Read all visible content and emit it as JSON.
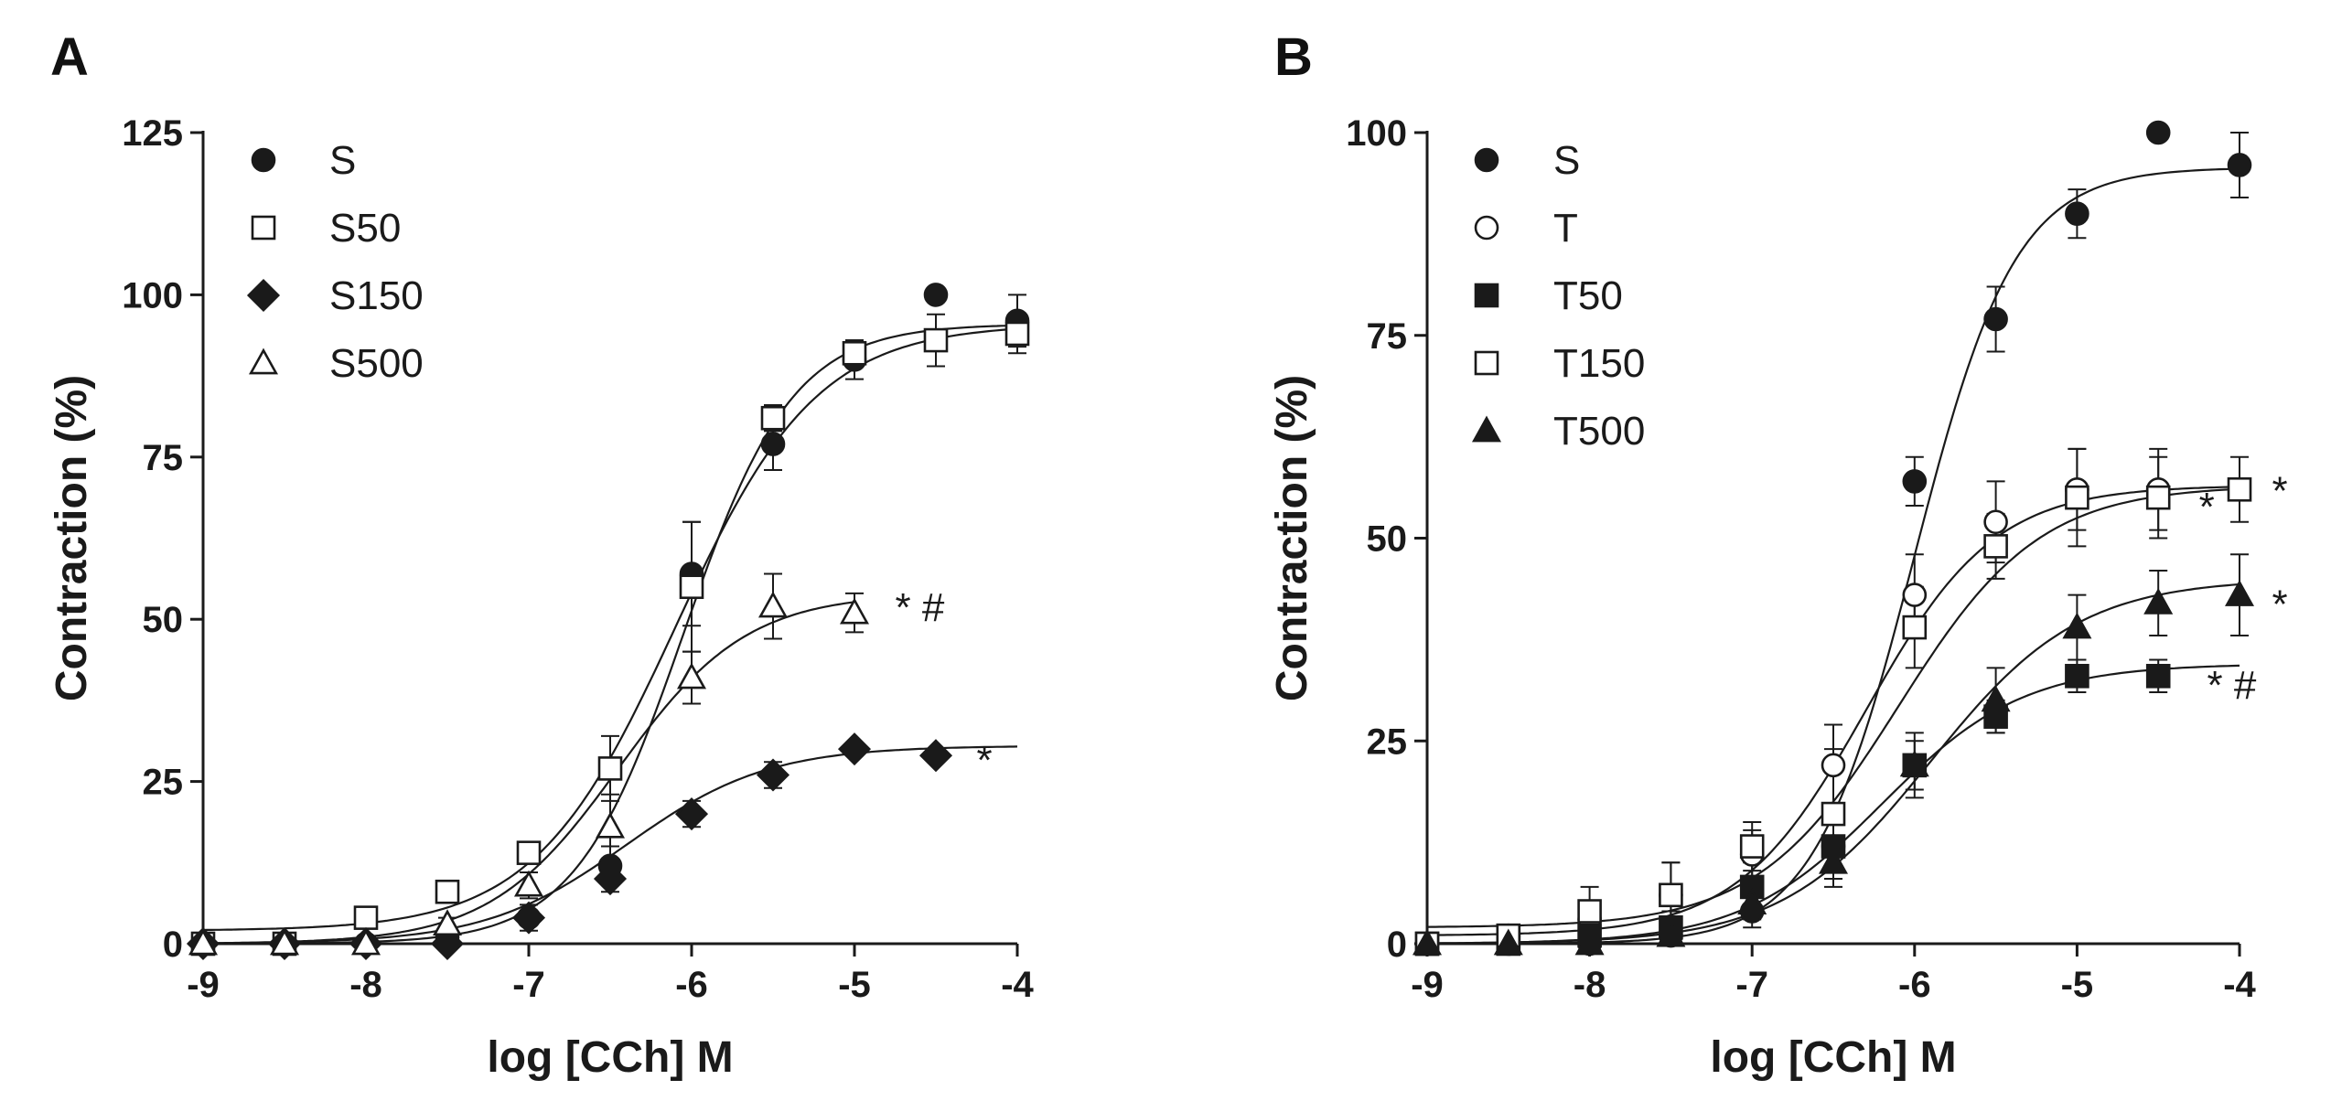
{
  "chart_data": [
    {
      "panel": "A",
      "type": "scatter",
      "xlabel": "log [CCh] M",
      "ylabel": "Contraction (%)",
      "xlim": [
        -9,
        -4
      ],
      "ylim": [
        0,
        125
      ],
      "xticks": [
        "-9",
        "-8",
        "-7",
        "-6",
        "-5",
        "-4"
      ],
      "yticks": [
        "0",
        "25",
        "50",
        "75",
        "100",
        "125"
      ],
      "legend_position": "top-left",
      "series": [
        {
          "name": "S",
          "marker": "filled-circle",
          "x": [
            -9,
            -8.5,
            -8,
            -7.5,
            -7,
            -6.5,
            -6,
            -5.5,
            -5,
            -4.5,
            -4
          ],
          "y": [
            0,
            0,
            0,
            1,
            4,
            12,
            57,
            77,
            90,
            100,
            96
          ],
          "err": [
            0,
            0,
            0,
            1,
            2,
            3,
            8,
            4,
            3,
            0,
            4
          ],
          "fit": {
            "bottom": 0,
            "top": 95.5,
            "logEC50": -6.05,
            "hill": 1.3
          }
        },
        {
          "name": "S50",
          "marker": "open-square",
          "x": [
            -9,
            -8.5,
            -8,
            -7.5,
            -7,
            -6.5,
            -6,
            -5.5,
            -5,
            -4.5,
            -4
          ],
          "y": [
            0,
            0,
            4,
            8,
            14,
            27,
            55,
            81,
            91,
            93,
            94
          ],
          "err": [
            0,
            0,
            0,
            1,
            1,
            5,
            10,
            2,
            2,
            4,
            3
          ],
          "fit": {
            "bottom": 2,
            "top": 95.5,
            "logEC50": -6.1,
            "hill": 1.0
          }
        },
        {
          "name": "S150",
          "marker": "filled-diamond",
          "x": [
            -9,
            -8.5,
            -8,
            -7.5,
            -7,
            -6.5,
            -6,
            -5.5,
            -5,
            -4.5
          ],
          "y": [
            0,
            0,
            0,
            0,
            4,
            10,
            20,
            26,
            30,
            29
          ],
          "err": [
            0,
            0,
            0,
            1,
            1,
            2,
            2,
            2,
            1,
            1
          ],
          "fit": {
            "bottom": 0,
            "top": 30.5,
            "logEC50": -6.4,
            "hill": 1.0
          }
        },
        {
          "name": "S500",
          "marker": "open-triangle",
          "x": [
            -9,
            -8.5,
            -8,
            -7.5,
            -7,
            -6.5,
            -6,
            -5.5,
            -5
          ],
          "y": [
            0,
            0,
            0,
            3,
            9,
            18,
            41,
            52,
            51
          ],
          "err": [
            0,
            0,
            0,
            1,
            2,
            5,
            4,
            5,
            3
          ],
          "fit": {
            "bottom": 0,
            "top": 54,
            "logEC50": -6.45,
            "hill": 1.1,
            "xmax": -5
          }
        }
      ],
      "annotations": [
        {
          "text": "* #",
          "x": -4.75,
          "y": 52
        },
        {
          "text": "*",
          "x": -4.25,
          "y": 28.5
        }
      ]
    },
    {
      "panel": "B",
      "type": "scatter",
      "xlabel": "log [CCh] M",
      "ylabel": "Contraction (%)",
      "xlim": [
        -9,
        -4
      ],
      "ylim": [
        0,
        100
      ],
      "xticks": [
        "-9",
        "-8",
        "-7",
        "-6",
        "-5",
        "-4"
      ],
      "yticks": [
        "0",
        "25",
        "50",
        "75",
        "100"
      ],
      "legend_position": "top-left",
      "series": [
        {
          "name": "S",
          "marker": "filled-circle",
          "x": [
            -9,
            -8.5,
            -8,
            -7.5,
            -7,
            -6.5,
            -6,
            -5.5,
            -5,
            -4.5,
            -4
          ],
          "y": [
            0,
            0,
            0,
            1,
            4,
            12,
            57,
            77,
            90,
            100,
            96
          ],
          "err": [
            0,
            0,
            0,
            1,
            2,
            3,
            3,
            4,
            3,
            0,
            4
          ],
          "fit": {
            "bottom": 0,
            "top": 95.7,
            "logEC50": -6.0,
            "hill": 1.4
          }
        },
        {
          "name": "T",
          "marker": "open-circle",
          "x": [
            -9,
            -8.5,
            -8,
            -7.5,
            -7,
            -6.5,
            -6,
            -5.5,
            -5,
            -4.5
          ],
          "y": [
            0,
            1,
            3,
            6,
            11,
            22,
            43,
            52,
            56,
            56
          ],
          "err": [
            0,
            1,
            2,
            4,
            3,
            5,
            5,
            5,
            5,
            5
          ],
          "fit": {
            "bottom": 1,
            "top": 56.5,
            "logEC50": -6.3,
            "hill": 1.1
          }
        },
        {
          "name": "T50",
          "marker": "filled-square",
          "x": [
            -9,
            -8.5,
            -8,
            -7.5,
            -7,
            -6.5,
            -6,
            -5.5,
            -5,
            -4.5
          ],
          "y": [
            0,
            0,
            1,
            2,
            7,
            12,
            22,
            28,
            33,
            33
          ],
          "err": [
            0,
            0,
            1,
            2,
            3,
            4,
            3,
            2,
            2,
            2
          ],
          "fit": {
            "bottom": 0,
            "top": 34.5,
            "logEC50": -6.2,
            "hill": 1.0
          }
        },
        {
          "name": "T150",
          "marker": "open-square",
          "x": [
            -9,
            -8.5,
            -8,
            -7.5,
            -7,
            -6.5,
            -6,
            -5.5,
            -5,
            -4.5,
            -4
          ],
          "y": [
            0,
            1,
            4,
            6,
            12,
            16,
            39,
            49,
            55,
            55,
            56
          ],
          "err": [
            0,
            1,
            3,
            4,
            3,
            8,
            5,
            4,
            6,
            5,
            4
          ],
          "fit": {
            "bottom": 2,
            "top": 56.5,
            "logEC50": -6.1,
            "hill": 1.0
          }
        },
        {
          "name": "T500",
          "marker": "filled-triangle",
          "x": [
            -9,
            -8.5,
            -8,
            -7.5,
            -7,
            -6.5,
            -6,
            -5.5,
            -5,
            -4.5,
            -4
          ],
          "y": [
            0,
            0,
            0,
            1,
            5,
            10,
            22,
            30,
            39,
            42,
            43
          ],
          "err": [
            0,
            0,
            1,
            1,
            2,
            3,
            4,
            4,
            4,
            4,
            5
          ],
          "fit": {
            "bottom": 0,
            "top": 45,
            "logEC50": -5.9,
            "hill": 0.95
          }
        }
      ],
      "annotations": [
        {
          "text": "*",
          "x": -4.25,
          "y": 54
        },
        {
          "text": "*",
          "x": -3.8,
          "y": 56
        },
        {
          "text": "*",
          "x": -3.8,
          "y": 42
        },
        {
          "text": "* #",
          "x": -4.2,
          "y": 32
        }
      ]
    }
  ]
}
